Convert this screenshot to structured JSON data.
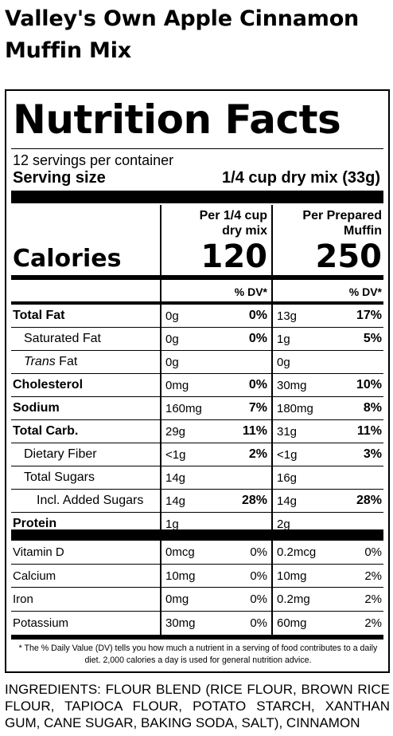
{
  "product": {
    "title_line1": "Valley's Own Apple Cinnamon",
    "title_line2": "Muffin Mix"
  },
  "label": {
    "title": "Nutrition Facts",
    "servings_per_container": "12 servings per container",
    "serving_size_label": "Serving size",
    "serving_size_value": "1/4 cup dry mix (33g)",
    "col1_head_line1": "Per 1/4 cup",
    "col1_head_line2": "dry mix",
    "col2_head_line1": "Per Prepared",
    "col2_head_line2": "Muffin",
    "calories_label": "Calories",
    "calories_col1": "120",
    "calories_col2": "250",
    "dv_head": "% DV*"
  },
  "nutrients": [
    {
      "name": "Total Fat",
      "bold": true,
      "indent": 0,
      "amt1": "0g",
      "pct1": "0%",
      "amt2": "13g",
      "pct2": "17%"
    },
    {
      "name": "Saturated Fat",
      "bold": false,
      "indent": 1,
      "amt1": "0g",
      "pct1": "0%",
      "amt2": "1g",
      "pct2": "5%"
    },
    {
      "name_italic": "Trans",
      "name": " Fat",
      "bold": false,
      "indent": 1,
      "amt1": "0g",
      "pct1": "",
      "amt2": "0g",
      "pct2": ""
    },
    {
      "name": "Cholesterol",
      "bold": true,
      "indent": 0,
      "amt1": "0mg",
      "pct1": "0%",
      "amt2": "30mg",
      "pct2": "10%"
    },
    {
      "name": "Sodium",
      "bold": true,
      "indent": 0,
      "amt1": "160mg",
      "pct1": "7%",
      "amt2": "180mg",
      "pct2": "8%"
    },
    {
      "name": "Total Carb.",
      "bold": true,
      "indent": 0,
      "amt1": "29g",
      "pct1": "11%",
      "amt2": "31g",
      "pct2": "11%"
    },
    {
      "name": "Dietary Fiber",
      "bold": false,
      "indent": 1,
      "amt1": "<1g",
      "pct1": "2%",
      "amt2": "<1g",
      "pct2": "3%"
    },
    {
      "name": "Total Sugars",
      "bold": false,
      "indent": 1,
      "amt1": "14g",
      "pct1": "",
      "amt2": "16g",
      "pct2": ""
    },
    {
      "name": "Incl. Added Sugars",
      "bold": false,
      "indent": 2,
      "amt1": "14g",
      "pct1": "28%",
      "amt2": "14g",
      "pct2": "28%"
    },
    {
      "name": "Protein",
      "bold": true,
      "indent": 0,
      "amt1": "1g",
      "pct1": "",
      "amt2": "2g",
      "pct2": ""
    }
  ],
  "vitamins": [
    {
      "name": "Vitamin D",
      "amt1": "0mcg",
      "pct1": "0%",
      "amt2": "0.2mcg",
      "pct2": "0%"
    },
    {
      "name": "Calcium",
      "amt1": "10mg",
      "pct1": "0%",
      "amt2": "10mg",
      "pct2": "2%"
    },
    {
      "name": "Iron",
      "amt1": "0mg",
      "pct1": "0%",
      "amt2": "0.2mg",
      "pct2": "2%"
    },
    {
      "name": "Potassium",
      "amt1": "30mg",
      "pct1": "0%",
      "amt2": "60mg",
      "pct2": "2%"
    }
  ],
  "footnote": "* The % Daily Value (DV) tells you how much a nutrient in a serving of food contributes to a daily diet. 2,000 calories a day is used for general nutrition advice.",
  "ingredients": "INGREDIENTS: FLOUR BLEND (RICE FLOUR, BROWN RICE FLOUR, TAPIOCA FLOUR, POTATO STARCH, XANTHAN GUM, CANE SUGAR, BAKING SODA, SALT), CINNAMON"
}
